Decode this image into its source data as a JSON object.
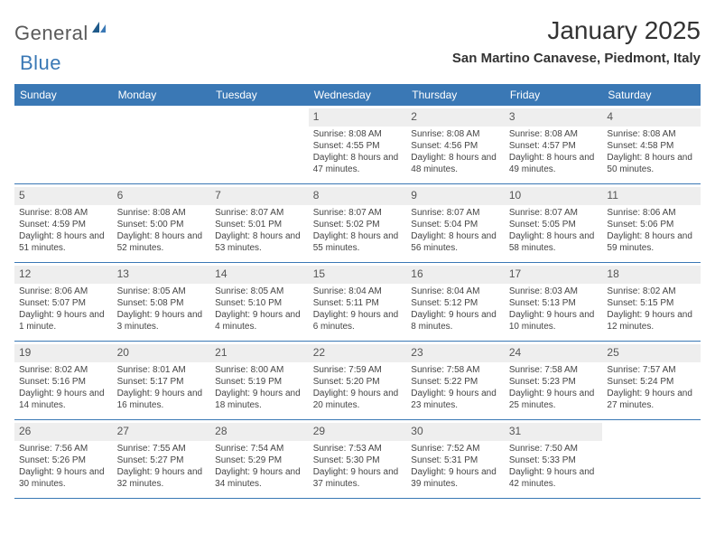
{
  "brand": {
    "text_general": "General",
    "text_blue": "Blue"
  },
  "month_title": "January 2025",
  "location": "San Martino Canavese, Piedmont, Italy",
  "colors": {
    "header_bg": "#3a78b5",
    "header_text": "#ffffff",
    "num_row_bg": "#eeeeee",
    "week_border": "#3a78b5",
    "body_text": "#444444"
  },
  "day_headers": [
    "Sunday",
    "Monday",
    "Tuesday",
    "Wednesday",
    "Thursday",
    "Friday",
    "Saturday"
  ],
  "weeks": [
    [
      {
        "empty": true
      },
      {
        "empty": true
      },
      {
        "empty": true
      },
      {
        "day": 1,
        "sunrise": "8:08 AM",
        "sunset": "4:55 PM",
        "daylight": "8 hours and 47 minutes."
      },
      {
        "day": 2,
        "sunrise": "8:08 AM",
        "sunset": "4:56 PM",
        "daylight": "8 hours and 48 minutes."
      },
      {
        "day": 3,
        "sunrise": "8:08 AM",
        "sunset": "4:57 PM",
        "daylight": "8 hours and 49 minutes."
      },
      {
        "day": 4,
        "sunrise": "8:08 AM",
        "sunset": "4:58 PM",
        "daylight": "8 hours and 50 minutes."
      }
    ],
    [
      {
        "day": 5,
        "sunrise": "8:08 AM",
        "sunset": "4:59 PM",
        "daylight": "8 hours and 51 minutes."
      },
      {
        "day": 6,
        "sunrise": "8:08 AM",
        "sunset": "5:00 PM",
        "daylight": "8 hours and 52 minutes."
      },
      {
        "day": 7,
        "sunrise": "8:07 AM",
        "sunset": "5:01 PM",
        "daylight": "8 hours and 53 minutes."
      },
      {
        "day": 8,
        "sunrise": "8:07 AM",
        "sunset": "5:02 PM",
        "daylight": "8 hours and 55 minutes."
      },
      {
        "day": 9,
        "sunrise": "8:07 AM",
        "sunset": "5:04 PM",
        "daylight": "8 hours and 56 minutes."
      },
      {
        "day": 10,
        "sunrise": "8:07 AM",
        "sunset": "5:05 PM",
        "daylight": "8 hours and 58 minutes."
      },
      {
        "day": 11,
        "sunrise": "8:06 AM",
        "sunset": "5:06 PM",
        "daylight": "8 hours and 59 minutes."
      }
    ],
    [
      {
        "day": 12,
        "sunrise": "8:06 AM",
        "sunset": "5:07 PM",
        "daylight": "9 hours and 1 minute."
      },
      {
        "day": 13,
        "sunrise": "8:05 AM",
        "sunset": "5:08 PM",
        "daylight": "9 hours and 3 minutes."
      },
      {
        "day": 14,
        "sunrise": "8:05 AM",
        "sunset": "5:10 PM",
        "daylight": "9 hours and 4 minutes."
      },
      {
        "day": 15,
        "sunrise": "8:04 AM",
        "sunset": "5:11 PM",
        "daylight": "9 hours and 6 minutes."
      },
      {
        "day": 16,
        "sunrise": "8:04 AM",
        "sunset": "5:12 PM",
        "daylight": "9 hours and 8 minutes."
      },
      {
        "day": 17,
        "sunrise": "8:03 AM",
        "sunset": "5:13 PM",
        "daylight": "9 hours and 10 minutes."
      },
      {
        "day": 18,
        "sunrise": "8:02 AM",
        "sunset": "5:15 PM",
        "daylight": "9 hours and 12 minutes."
      }
    ],
    [
      {
        "day": 19,
        "sunrise": "8:02 AM",
        "sunset": "5:16 PM",
        "daylight": "9 hours and 14 minutes."
      },
      {
        "day": 20,
        "sunrise": "8:01 AM",
        "sunset": "5:17 PM",
        "daylight": "9 hours and 16 minutes."
      },
      {
        "day": 21,
        "sunrise": "8:00 AM",
        "sunset": "5:19 PM",
        "daylight": "9 hours and 18 minutes."
      },
      {
        "day": 22,
        "sunrise": "7:59 AM",
        "sunset": "5:20 PM",
        "daylight": "9 hours and 20 minutes."
      },
      {
        "day": 23,
        "sunrise": "7:58 AM",
        "sunset": "5:22 PM",
        "daylight": "9 hours and 23 minutes."
      },
      {
        "day": 24,
        "sunrise": "7:58 AM",
        "sunset": "5:23 PM",
        "daylight": "9 hours and 25 minutes."
      },
      {
        "day": 25,
        "sunrise": "7:57 AM",
        "sunset": "5:24 PM",
        "daylight": "9 hours and 27 minutes."
      }
    ],
    [
      {
        "day": 26,
        "sunrise": "7:56 AM",
        "sunset": "5:26 PM",
        "daylight": "9 hours and 30 minutes."
      },
      {
        "day": 27,
        "sunrise": "7:55 AM",
        "sunset": "5:27 PM",
        "daylight": "9 hours and 32 minutes."
      },
      {
        "day": 28,
        "sunrise": "7:54 AM",
        "sunset": "5:29 PM",
        "daylight": "9 hours and 34 minutes."
      },
      {
        "day": 29,
        "sunrise": "7:53 AM",
        "sunset": "5:30 PM",
        "daylight": "9 hours and 37 minutes."
      },
      {
        "day": 30,
        "sunrise": "7:52 AM",
        "sunset": "5:31 PM",
        "daylight": "9 hours and 39 minutes."
      },
      {
        "day": 31,
        "sunrise": "7:50 AM",
        "sunset": "5:33 PM",
        "daylight": "9 hours and 42 minutes."
      },
      {
        "empty": true
      }
    ]
  ],
  "labels": {
    "sunrise": "Sunrise:",
    "sunset": "Sunset:",
    "daylight": "Daylight:"
  }
}
